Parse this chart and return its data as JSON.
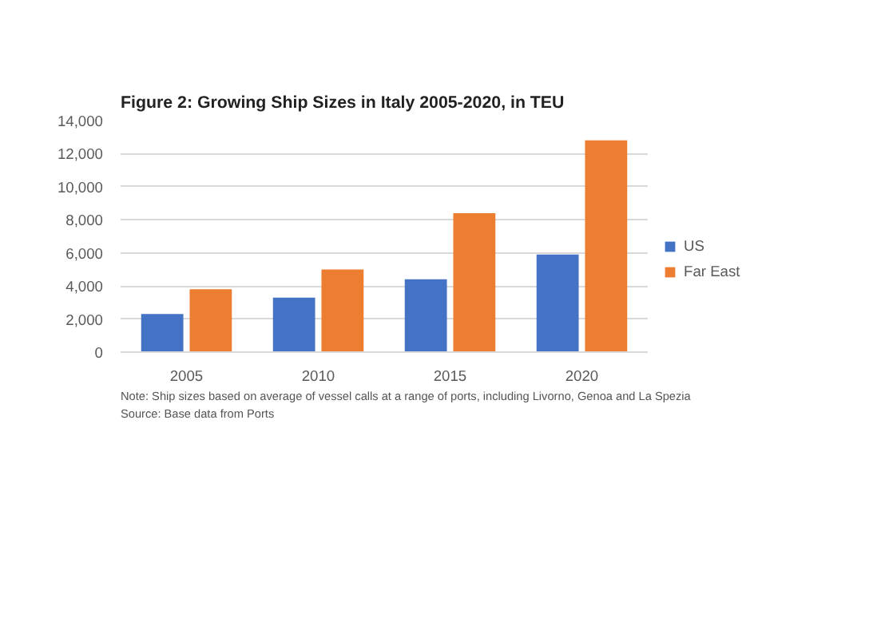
{
  "chart_data": {
    "type": "bar",
    "title": "Figure 2: Growing Ship Sizes in Italy 2005-2020, in TEU",
    "categories": [
      "2005",
      "2010",
      "2015",
      "2020"
    ],
    "series": [
      {
        "name": "US",
        "color": "#4472c4",
        "values": [
          2300,
          3300,
          4400,
          5900
        ]
      },
      {
        "name": "Far East",
        "color": "#ed7d31",
        "values": [
          3800,
          5000,
          8400,
          12800
        ]
      }
    ],
    "ylim": [
      0,
      14000
    ],
    "yticks": [
      {
        "value": 0,
        "label": "0"
      },
      {
        "value": 2000,
        "label": "2,000"
      },
      {
        "value": 4000,
        "label": "4,000"
      },
      {
        "value": 6000,
        "label": "6,000"
      },
      {
        "value": 8000,
        "label": "8,000"
      },
      {
        "value": 10000,
        "label": "10,000"
      },
      {
        "value": 12000,
        "label": "12,000"
      },
      {
        "value": 14000,
        "label": "14,000"
      }
    ],
    "grid": "y",
    "legend": "right",
    "annotations": [
      "Note: Ship sizes based on average of vessel calls at a range of ports, including Livorno, Genoa and La Spezia",
      "Source: Base data from Ports"
    ]
  }
}
